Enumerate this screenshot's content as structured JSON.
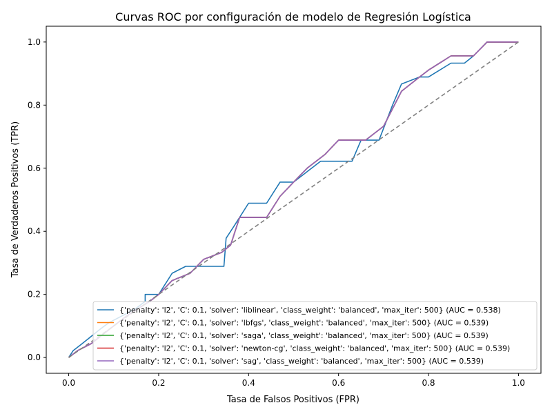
{
  "chart_data": {
    "type": "line",
    "title": "Curvas ROC por configuración de modelo de Regresión Logística",
    "xlabel": "Tasa de Falsos Positivos (FPR)",
    "ylabel": "Tasa de Verdaderos Positivos (TPR)",
    "xlim": [
      -0.05,
      1.05
    ],
    "ylim": [
      -0.05,
      1.05
    ],
    "xticks": [
      0.0,
      0.2,
      0.4,
      0.6,
      0.8,
      1.0
    ],
    "yticks": [
      0.0,
      0.2,
      0.4,
      0.6,
      0.8,
      1.0
    ],
    "xtick_labels": [
      "0.0",
      "0.2",
      "0.4",
      "0.6",
      "0.8",
      "1.0"
    ],
    "ytick_labels": [
      "0.0",
      "0.2",
      "0.4",
      "0.6",
      "0.8",
      "1.0"
    ],
    "grid": false,
    "legend_position": "lower right",
    "reference_line": {
      "x": [
        0,
        1
      ],
      "y": [
        0,
        1
      ],
      "color": "#808080",
      "style": "dashed"
    },
    "series": [
      {
        "name": "{'penalty': 'l2', 'C': 0.1, 'solver': 'liblinear', 'class_weight': 'balanced', 'max_iter': 500} (AUC = 0.538)",
        "color": "#1f77b4",
        "x": [
          0.0,
          0.01,
          0.03,
          0.05,
          0.07,
          0.09,
          0.12,
          0.15,
          0.17,
          0.17,
          0.2,
          0.23,
          0.26,
          0.3,
          0.345,
          0.35,
          0.37,
          0.4,
          0.44,
          0.47,
          0.5,
          0.54,
          0.56,
          0.63,
          0.65,
          0.69,
          0.72,
          0.74,
          0.78,
          0.8,
          0.85,
          0.88,
          0.9,
          0.93,
          1.0
        ],
        "y": [
          0.0,
          0.022,
          0.044,
          0.067,
          0.09,
          0.111,
          0.133,
          0.156,
          0.178,
          0.2,
          0.2,
          0.267,
          0.289,
          0.289,
          0.289,
          0.378,
          0.422,
          0.489,
          0.489,
          0.556,
          0.556,
          0.6,
          0.622,
          0.622,
          0.689,
          0.689,
          0.8,
          0.867,
          0.889,
          0.889,
          0.933,
          0.933,
          0.956,
          1.0,
          1.0
        ]
      },
      {
        "name": "{'penalty': 'l2', 'C': 0.1, 'solver': 'lbfgs', 'class_weight': 'balanced', 'max_iter': 500} (AUC = 0.539)",
        "color": "#ff7f0e",
        "x": [
          0.0,
          0.02,
          0.05,
          0.09,
          0.13,
          0.18,
          0.2,
          0.23,
          0.27,
          0.3,
          0.34,
          0.36,
          0.38,
          0.44,
          0.47,
          0.5,
          0.53,
          0.57,
          0.6,
          0.66,
          0.7,
          0.74,
          0.78,
          0.8,
          0.85,
          0.9,
          0.93,
          1.0
        ],
        "y": [
          0.0,
          0.022,
          0.044,
          0.089,
          0.133,
          0.178,
          0.2,
          0.244,
          0.267,
          0.311,
          0.333,
          0.356,
          0.444,
          0.444,
          0.511,
          0.556,
          0.6,
          0.644,
          0.689,
          0.689,
          0.733,
          0.844,
          0.889,
          0.911,
          0.956,
          0.956,
          1.0,
          1.0
        ]
      },
      {
        "name": "{'penalty': 'l2', 'C': 0.1, 'solver': 'saga', 'class_weight': 'balanced', 'max_iter': 500} (AUC = 0.539)",
        "color": "#2ca02c",
        "x": [
          0.0,
          0.02,
          0.05,
          0.09,
          0.13,
          0.18,
          0.2,
          0.23,
          0.27,
          0.3,
          0.34,
          0.36,
          0.38,
          0.44,
          0.47,
          0.5,
          0.53,
          0.57,
          0.6,
          0.66,
          0.7,
          0.74,
          0.78,
          0.8,
          0.85,
          0.9,
          0.93,
          1.0
        ],
        "y": [
          0.0,
          0.022,
          0.044,
          0.089,
          0.133,
          0.178,
          0.2,
          0.244,
          0.267,
          0.311,
          0.333,
          0.356,
          0.444,
          0.444,
          0.511,
          0.556,
          0.6,
          0.644,
          0.689,
          0.689,
          0.733,
          0.844,
          0.889,
          0.911,
          0.956,
          0.956,
          1.0,
          1.0
        ]
      },
      {
        "name": "{'penalty': 'l2', 'C': 0.1, 'solver': 'newton-cg', 'class_weight': 'balanced', 'max_iter': 500} (AUC = 0.539)",
        "color": "#d62728",
        "x": [
          0.0,
          0.02,
          0.05,
          0.09,
          0.13,
          0.18,
          0.2,
          0.23,
          0.27,
          0.3,
          0.34,
          0.36,
          0.38,
          0.44,
          0.47,
          0.5,
          0.53,
          0.57,
          0.6,
          0.66,
          0.7,
          0.74,
          0.78,
          0.8,
          0.85,
          0.9,
          0.93,
          1.0
        ],
        "y": [
          0.0,
          0.022,
          0.044,
          0.089,
          0.133,
          0.178,
          0.2,
          0.244,
          0.267,
          0.311,
          0.333,
          0.356,
          0.444,
          0.444,
          0.511,
          0.556,
          0.6,
          0.644,
          0.689,
          0.689,
          0.733,
          0.844,
          0.889,
          0.911,
          0.956,
          0.956,
          1.0,
          1.0
        ]
      },
      {
        "name": "{'penalty': 'l2', 'C': 0.1, 'solver': 'sag', 'class_weight': 'balanced', 'max_iter': 500} (AUC = 0.539)",
        "color": "#9467bd",
        "x": [
          0.0,
          0.02,
          0.05,
          0.09,
          0.13,
          0.18,
          0.2,
          0.23,
          0.27,
          0.3,
          0.34,
          0.36,
          0.38,
          0.44,
          0.47,
          0.5,
          0.53,
          0.57,
          0.6,
          0.66,
          0.7,
          0.74,
          0.78,
          0.8,
          0.85,
          0.9,
          0.93,
          1.0
        ],
        "y": [
          0.0,
          0.022,
          0.044,
          0.089,
          0.133,
          0.178,
          0.2,
          0.244,
          0.267,
          0.311,
          0.333,
          0.356,
          0.444,
          0.444,
          0.511,
          0.556,
          0.6,
          0.644,
          0.689,
          0.689,
          0.733,
          0.844,
          0.889,
          0.911,
          0.956,
          0.956,
          1.0,
          1.0
        ]
      }
    ]
  }
}
